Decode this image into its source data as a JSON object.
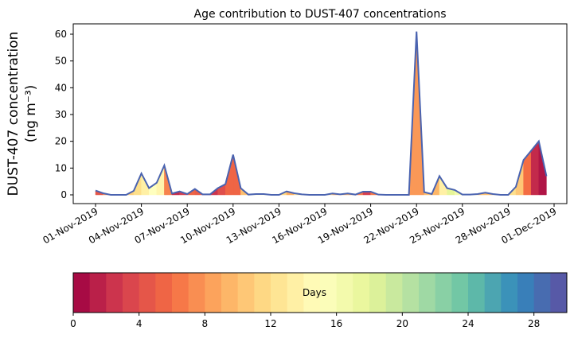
{
  "chart_data": {
    "type": "area",
    "title": "Age contribution to DUST-407 concentrations",
    "ylabel_line1": "DUST-407 concentration",
    "ylabel_line2": "(ng m⁻³)",
    "xlabel": "",
    "ylim": [
      -3,
      64
    ],
    "yticks": [
      0,
      10,
      20,
      30,
      40,
      50,
      60
    ],
    "xtick_days": [
      0,
      3,
      6,
      9,
      12,
      15,
      18,
      21,
      24,
      27,
      30
    ],
    "xtick_labels": [
      "01-Nov-2019",
      "04-Nov-2019",
      "07-Nov-2019",
      "10-Nov-2019",
      "13-Nov-2019",
      "16-Nov-2019",
      "19-Nov-2019",
      "22-Nov-2019",
      "25-Nov-2019",
      "28-Nov-2019",
      "01-Dec-2019"
    ],
    "x_days_from_01Nov": [
      0,
      0.5,
      1,
      1.5,
      2,
      2.5,
      3,
      3.5,
      4,
      4.5,
      5,
      5.5,
      6,
      6.5,
      7,
      7.5,
      8,
      8.5,
      9,
      9.5,
      10,
      10.5,
      11,
      11.5,
      12,
      12.5,
      13,
      13.5,
      14,
      14.5,
      15,
      15.5,
      16,
      16.5,
      17,
      17.5,
      18,
      18.5,
      19,
      19.5,
      20,
      20.5,
      21,
      21.5,
      22,
      22.5,
      23,
      23.5,
      24,
      24.5,
      25,
      25.5,
      26,
      26.5,
      27,
      27.5,
      28,
      28.5,
      29,
      29.5
    ],
    "total": [
      1.6,
      0.6,
      0,
      0,
      0,
      1.5,
      8,
      2.5,
      4.5,
      11,
      0.5,
      1.3,
      0.3,
      2.2,
      0.2,
      0.2,
      2.5,
      4,
      15,
      2.5,
      0.1,
      0.3,
      0.3,
      0,
      0,
      1.3,
      0.6,
      0.2,
      0,
      0,
      0,
      0.5,
      0.2,
      0.5,
      0.1,
      1.2,
      1.2,
      0.1,
      0,
      0,
      0,
      0,
      61,
      1,
      0.3,
      7,
      2.5,
      1.8,
      0.1,
      0.1,
      0.3,
      0.8,
      0.3,
      0,
      0,
      3,
      13,
      16.5,
      20,
      7
    ],
    "dominant_age_days": [
      4,
      5,
      10,
      10,
      10,
      12,
      12,
      15,
      15,
      13,
      1,
      3,
      3,
      8,
      2,
      2,
      3,
      5,
      6,
      5,
      15,
      15,
      15,
      15,
      15,
      8,
      10,
      15,
      15,
      15,
      15,
      8,
      10,
      8,
      10,
      3,
      3,
      10,
      10,
      10,
      10,
      10,
      6,
      10,
      10,
      9,
      18,
      18,
      15,
      15,
      12,
      8,
      12,
      12,
      12,
      12,
      9,
      3,
      1,
      1
    ],
    "colorbar": {
      "label": "Days",
      "range": [
        0,
        30
      ],
      "bins": 30,
      "ticks": [
        0,
        4,
        8,
        12,
        16,
        20,
        24,
        28
      ],
      "colormap_anchors": [
        "#9e0142",
        "#d53e4f",
        "#f46d43",
        "#fdae61",
        "#fee08b",
        "#ffffbf",
        "#e6f598",
        "#abdda4",
        "#66c2a5",
        "#3288bd",
        "#5e4fa2"
      ]
    },
    "line_color": "#4a63b0",
    "grid": false
  }
}
